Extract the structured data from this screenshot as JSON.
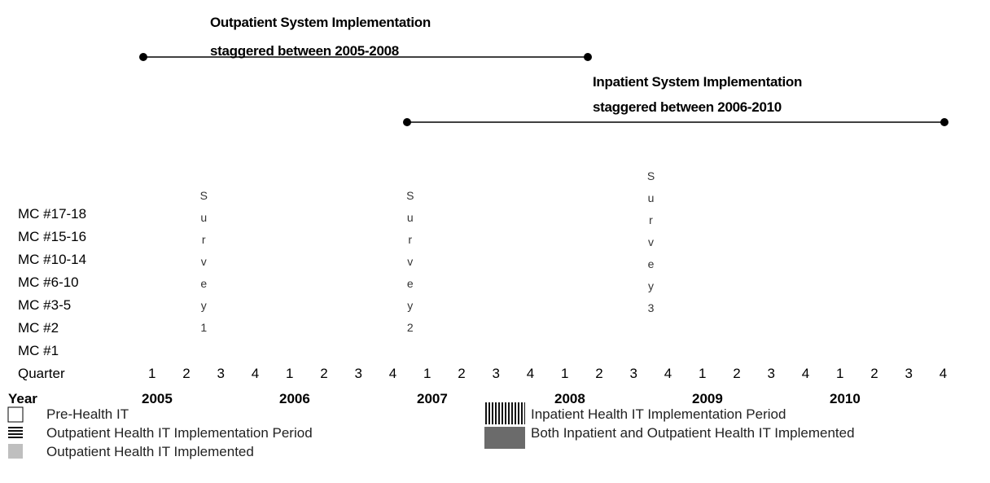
{
  "outpatient": {
    "title": "Outpatient System Implementation",
    "subtitle": "staggered between 2005-2008"
  },
  "inpatient": {
    "title": "Inpatient System Implementation",
    "subtitle": "staggered between 2006-2010"
  },
  "rows": [
    "MC #17-18",
    "MC #15-16",
    "MC #10-14",
    "MC #6-10",
    "MC #3-5",
    "MC #2",
    "MC #1"
  ],
  "quarter_label": "Quarter",
  "quarters": [
    "1",
    "2",
    "3",
    "4"
  ],
  "year_label": "Year",
  "years": [
    "2005",
    "2006",
    "2007",
    "2008",
    "2009",
    "2010"
  ],
  "surveys": [
    "Survey 1",
    "Survey 2",
    "Survey 3"
  ],
  "legend": [
    "Pre-Health IT",
    "Outpatient Health IT Implementation Period",
    "Outpatient Health IT Implemented",
    "Inpatient Health IT Implementation Period",
    "Both Inpatient and Outpatient Health IT Implemented"
  ]
}
